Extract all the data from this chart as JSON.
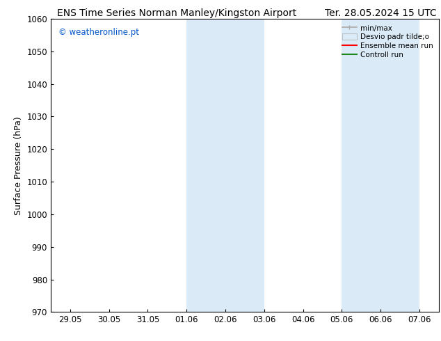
{
  "title_left": "ENS Time Series Norman Manley/Kingston Airport",
  "title_right": "Ter. 28.05.2024 15 UTC",
  "ylabel": "Surface Pressure (hPa)",
  "ylim": [
    970,
    1060
  ],
  "yticks": [
    970,
    980,
    990,
    1000,
    1010,
    1020,
    1030,
    1040,
    1050,
    1060
  ],
  "xtick_labels": [
    "29.05",
    "30.05",
    "31.05",
    "01.06",
    "02.06",
    "03.06",
    "04.06",
    "05.06",
    "06.06",
    "07.06"
  ],
  "xtick_positions": [
    0,
    1,
    2,
    3,
    4,
    5,
    6,
    7,
    8,
    9
  ],
  "shaded_bands": [
    {
      "x_start": 3,
      "x_end": 4,
      "color": "#daeaf7"
    },
    {
      "x_start": 4,
      "x_end": 5,
      "color": "#daeaf7"
    },
    {
      "x_start": 7,
      "x_end": 8,
      "color": "#daeaf7"
    },
    {
      "x_start": 8,
      "x_end": 9,
      "color": "#daeaf7"
    }
  ],
  "watermark": "© weatheronline.pt",
  "watermark_color": "#0055cc",
  "bg_color": "#ffffff",
  "legend_labels": [
    "min/max",
    "Desvio padr tilde;o",
    "Ensemble mean run",
    "Controll run"
  ],
  "legend_colors_line": [
    "#aaaaaa",
    "#ccddee",
    "#ff0000",
    "#228822"
  ],
  "title_fontsize": 10,
  "label_fontsize": 9,
  "tick_fontsize": 8.5
}
